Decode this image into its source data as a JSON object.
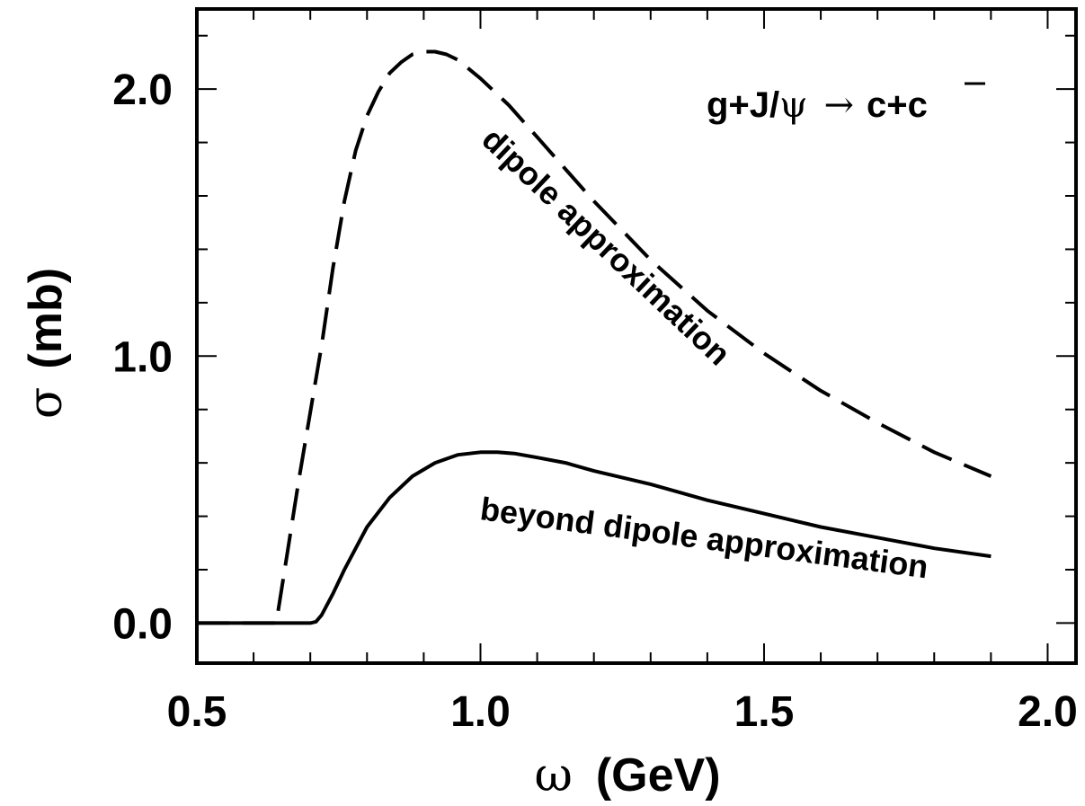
{
  "chart_data": {
    "type": "line",
    "xlabel_symbol": "ω",
    "xlabel_unit": "(GeV)",
    "ylabel_symbol": "σ",
    "ylabel_unit": "(mb)",
    "xlim": [
      0.5,
      2.05
    ],
    "ylim": [
      -0.15,
      2.3
    ],
    "x_ticks": [
      "0.5",
      "1.0",
      "1.5",
      "2.0"
    ],
    "x_tick_values": [
      0.5,
      1.0,
      1.5,
      2.0
    ],
    "y_ticks": [
      "0.0",
      "1.0",
      "2.0"
    ],
    "y_tick_values": [
      0.0,
      1.0,
      2.0
    ],
    "x_minor_step": 0.1,
    "y_minor_step": 0.2,
    "grid": false,
    "legend": "none",
    "reaction": {
      "lhs": "g+J/",
      "psi": "ψ",
      "arrow": "→",
      "rhs": "c+",
      "cbar": "c"
    },
    "series": [
      {
        "style": "dashed",
        "label": "dipole approximation",
        "x": [
          0.5,
          0.64,
          0.66,
          0.68,
          0.7,
          0.72,
          0.74,
          0.76,
          0.78,
          0.8,
          0.82,
          0.84,
          0.86,
          0.88,
          0.9,
          0.92,
          0.94,
          0.96,
          1.0,
          1.05,
          1.1,
          1.15,
          1.2,
          1.3,
          1.4,
          1.5,
          1.6,
          1.7,
          1.8,
          1.9
        ],
        "y": [
          0.0,
          0.0,
          0.27,
          0.54,
          0.79,
          1.04,
          1.33,
          1.58,
          1.77,
          1.9,
          1.99,
          2.06,
          2.1,
          2.13,
          2.14,
          2.14,
          2.13,
          2.11,
          2.04,
          1.94,
          1.82,
          1.7,
          1.58,
          1.36,
          1.17,
          1.01,
          0.87,
          0.75,
          0.64,
          0.55
        ]
      },
      {
        "style": "solid",
        "label": "beyond dipole approximation",
        "x": [
          0.5,
          0.7,
          0.71,
          0.72,
          0.74,
          0.76,
          0.78,
          0.8,
          0.84,
          0.88,
          0.92,
          0.96,
          1.0,
          1.03,
          1.06,
          1.1,
          1.15,
          1.2,
          1.3,
          1.4,
          1.5,
          1.6,
          1.7,
          1.8,
          1.9
        ],
        "y": [
          0.0,
          0.0,
          0.005,
          0.03,
          0.11,
          0.2,
          0.28,
          0.36,
          0.47,
          0.55,
          0.6,
          0.63,
          0.64,
          0.64,
          0.635,
          0.62,
          0.6,
          0.57,
          0.52,
          0.46,
          0.41,
          0.36,
          0.32,
          0.28,
          0.25
        ]
      }
    ]
  }
}
